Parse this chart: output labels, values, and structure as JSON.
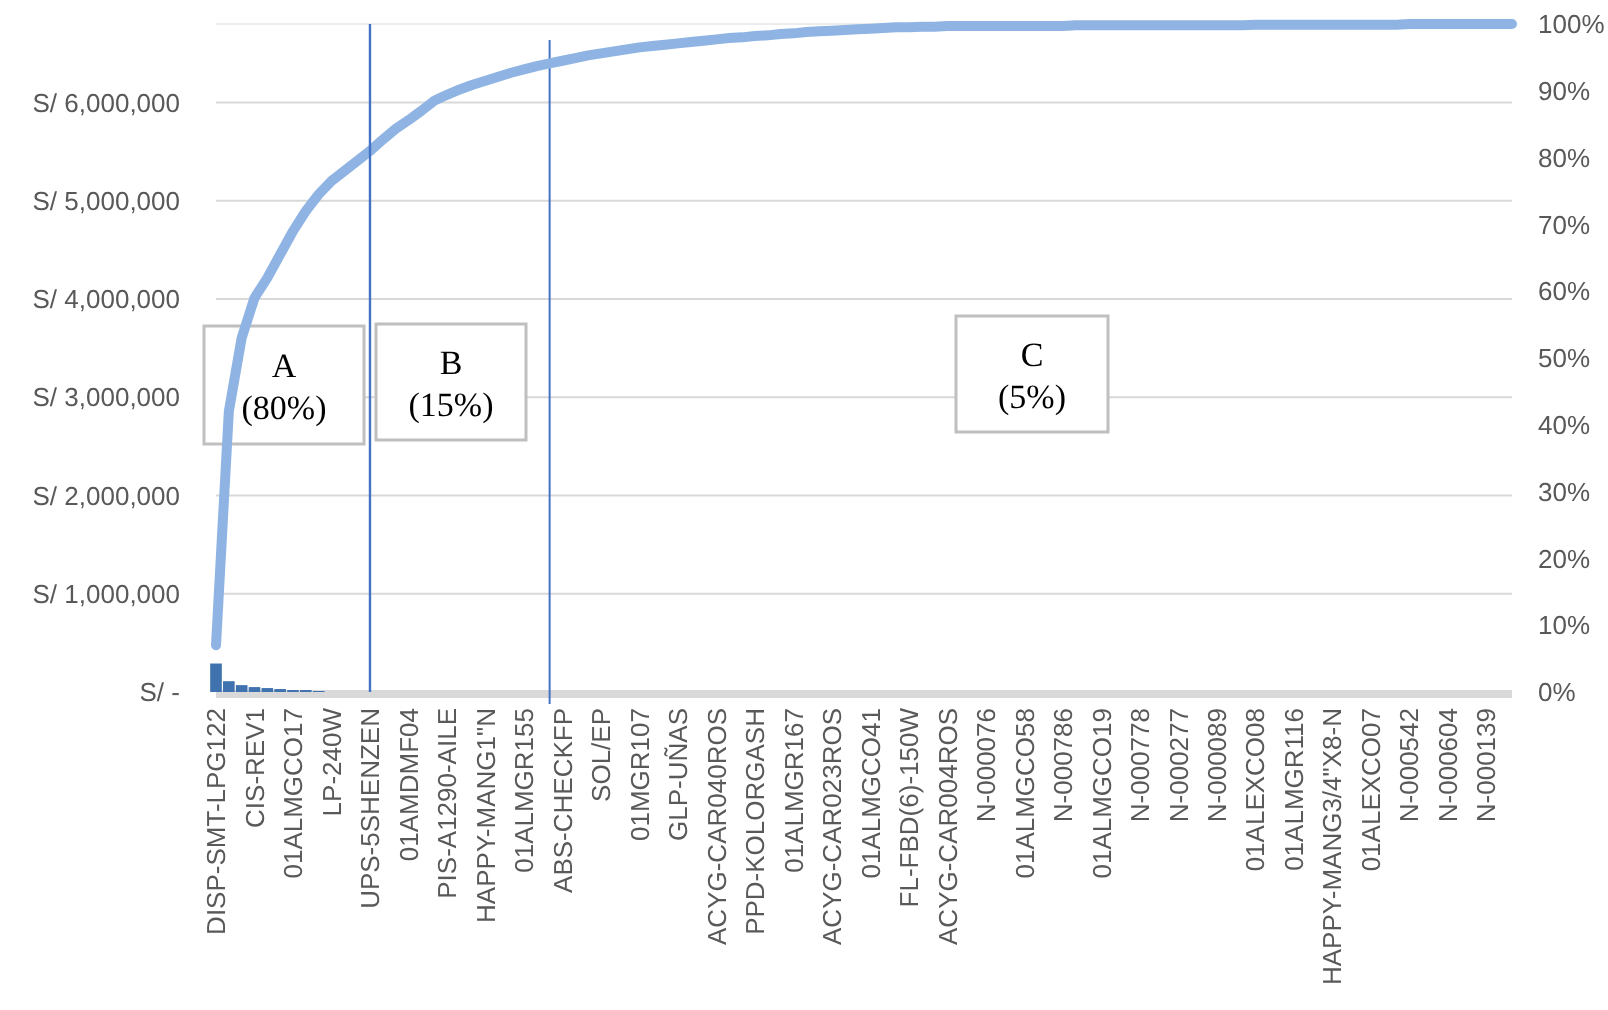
{
  "chart_data": {
    "type": "bar",
    "categories": [
      "DISP-SMT-LPG122",
      null,
      null,
      "CIS-REV1",
      null,
      null,
      "01ALMGCO17",
      null,
      null,
      "LP-240W",
      null,
      null,
      "UPS-5SHENZEN",
      null,
      null,
      "01AMDMF04",
      null,
      null,
      "PIS-A1290-AILE",
      null,
      null,
      "HAPPY-MANG1\"N",
      null,
      null,
      "01ALMGR155",
      null,
      null,
      "ABS-CHECKFP",
      null,
      null,
      "SOL/EP",
      null,
      null,
      "01MGR107",
      null,
      null,
      "GLP-UÑAS",
      null,
      null,
      "ACYG-CAR040ROS",
      null,
      null,
      "PPD-KOLORGASH",
      null,
      null,
      "01ALMGR167",
      null,
      null,
      "ACYG-CAR023ROS",
      null,
      null,
      "01ALMGCO41",
      null,
      null,
      "FL-FBD(6)-150W",
      null,
      null,
      "ACYG-CAR004ROS",
      null,
      null,
      "N-000076",
      null,
      null,
      "01ALMGCO58",
      null,
      null,
      "N-000786",
      null,
      null,
      "01ALMGCO19",
      null,
      null,
      "N-000778",
      null,
      null,
      "N-000277",
      null,
      null,
      "N-000089",
      null,
      null,
      "01ALEXCO08",
      null,
      null,
      "01ALMGR116",
      null,
      null,
      "HAPPY-MANG3/4\"X8-N",
      null,
      null,
      "01ALEXCO07",
      null,
      null,
      "N-000542",
      null,
      null,
      "N-000604",
      null,
      null,
      "N-000139",
      null,
      null
    ],
    "series": [
      {
        "color": "#3f72af",
        "values": [
          290000,
          110000,
          70000,
          50000,
          40000,
          30000,
          20000,
          20000,
          10000,
          0,
          0,
          0,
          0,
          0,
          0,
          0,
          0,
          0,
          0,
          0,
          0,
          0,
          0,
          0,
          0,
          0,
          0,
          0,
          0,
          0,
          0,
          0,
          0,
          0,
          0,
          0,
          0,
          0,
          0,
          0,
          0,
          0,
          0,
          0,
          0,
          0,
          0,
          0,
          0,
          0,
          0,
          0,
          0,
          0,
          0,
          0,
          0,
          0,
          0,
          0,
          0,
          0,
          0,
          0,
          0,
          0,
          0,
          0,
          0,
          0,
          0,
          0,
          0,
          0,
          0,
          0,
          0,
          0,
          0,
          0,
          0,
          0,
          0,
          0,
          0,
          0,
          0,
          0,
          0,
          0,
          0,
          0,
          0,
          0,
          0,
          0,
          0,
          0,
          0,
          0,
          0,
          0
        ]
      },
      {
        "type": "line",
        "axis": "y2",
        "color": "#8fb4e3",
        "values": [
          7,
          42,
          53,
          59,
          62,
          65.5,
          69,
          72,
          74.5,
          76.5,
          78,
          79.5,
          81,
          82.7,
          84.3,
          85.6,
          87,
          88.5,
          89.4,
          90.2,
          90.9,
          91.5,
          92.1,
          92.7,
          93.2,
          93.7,
          94.1,
          94.5,
          94.9,
          95.3,
          95.6,
          95.9,
          96.2,
          96.5,
          96.7,
          96.9,
          97.1,
          97.3,
          97.5,
          97.7,
          97.9,
          98,
          98.2,
          98.3,
          98.5,
          98.6,
          98.8,
          98.9,
          99,
          99.1,
          99.2,
          99.3,
          99.4,
          99.5,
          99.5,
          99.6,
          99.6,
          99.7,
          99.7,
          99.7,
          99.7,
          99.7,
          99.7,
          99.7,
          99.7,
          99.7,
          99.7,
          99.8,
          99.8,
          99.8,
          99.8,
          99.8,
          99.8,
          99.8,
          99.8,
          99.8,
          99.8,
          99.8,
          99.8,
          99.8,
          99.8,
          99.9,
          99.9,
          99.9,
          99.9,
          99.9,
          99.9,
          99.9,
          99.9,
          99.9,
          99.9,
          99.9,
          99.9,
          100,
          100,
          100,
          100,
          100,
          100,
          100,
          100,
          100
        ]
      }
    ],
    "ylim": [
      0,
      6800000
    ],
    "yticks": [
      {
        "value": 0,
        "label": "S/ -"
      },
      {
        "value": 1000000,
        "label": "S/ 1,000,000"
      },
      {
        "value": 2000000,
        "label": "S/ 2,000,000"
      },
      {
        "value": 3000000,
        "label": "S/ 3,000,000"
      },
      {
        "value": 4000000,
        "label": "S/ 4,000,000"
      },
      {
        "value": 5000000,
        "label": "S/ 5,000,000"
      },
      {
        "value": 6000000,
        "label": "S/ 6,000,000"
      }
    ],
    "y2lim": [
      0,
      100
    ],
    "y2ticks": [
      {
        "value": 0,
        "label": "0%"
      },
      {
        "value": 10,
        "label": "10%"
      },
      {
        "value": 20,
        "label": "20%"
      },
      {
        "value": 30,
        "label": "30%"
      },
      {
        "value": 40,
        "label": "40%"
      },
      {
        "value": 50,
        "label": "50%"
      },
      {
        "value": 60,
        "label": "60%"
      },
      {
        "value": 70,
        "label": "70%"
      },
      {
        "value": 80,
        "label": "80%"
      },
      {
        "value": 90,
        "label": "90%"
      },
      {
        "value": 100,
        "label": "100%"
      }
    ],
    "ref_lines": [
      {
        "axis": "x",
        "value": "UPS-5SHENZEN",
        "color": "#4472c4"
      }
    ],
    "annotations": [
      "A\n(80%)",
      "B\n(15%)",
      "C\n(5%)"
    ],
    "grid": "y"
  }
}
